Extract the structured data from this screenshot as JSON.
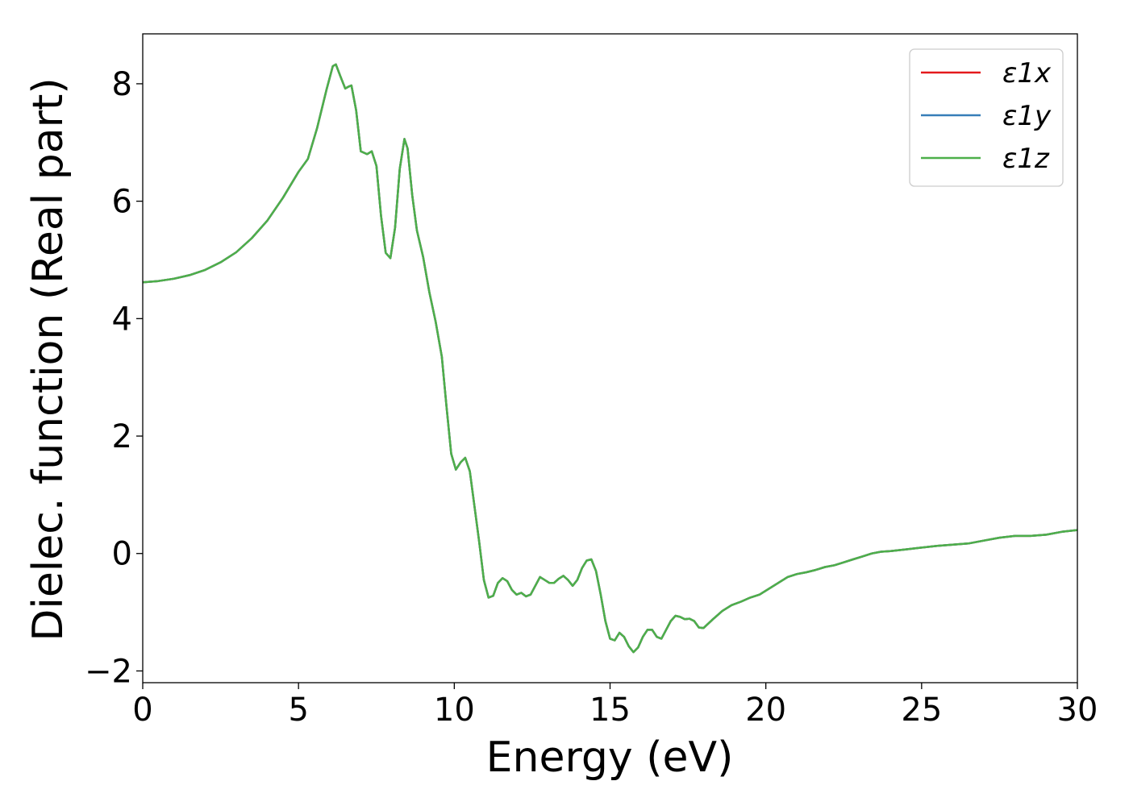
{
  "chart_data": {
    "type": "line",
    "title": "",
    "xlabel": "Energy (eV)",
    "ylabel": "Dielec. function (Real part)",
    "xlim": [
      0,
      30
    ],
    "ylim": [
      -2.2,
      8.85
    ],
    "xticks": [
      0,
      5,
      10,
      15,
      20,
      25,
      30
    ],
    "yticks": [
      -2,
      0,
      2,
      4,
      6,
      8
    ],
    "xtick_labels": [
      "0",
      "5",
      "10",
      "15",
      "20",
      "25",
      "30"
    ],
    "ytick_labels": [
      "−2",
      "0",
      "2",
      "4",
      "6",
      "8"
    ],
    "grid": false,
    "legend_position": "top-right",
    "x": [
      0,
      0.5,
      1.0,
      1.5,
      2.0,
      2.5,
      3.0,
      3.5,
      4.0,
      4.5,
      5.0,
      5.3,
      5.6,
      5.9,
      6.1,
      6.2,
      6.35,
      6.5,
      6.6,
      6.7,
      6.85,
      7.0,
      7.2,
      7.35,
      7.5,
      7.65,
      7.8,
      7.95,
      8.1,
      8.25,
      8.4,
      8.5,
      8.65,
      8.8,
      9.0,
      9.2,
      9.4,
      9.6,
      9.75,
      9.9,
      10.05,
      10.2,
      10.35,
      10.5,
      10.65,
      10.8,
      10.95,
      11.1,
      11.25,
      11.4,
      11.55,
      11.7,
      11.85,
      12.0,
      12.15,
      12.3,
      12.45,
      12.6,
      12.75,
      12.9,
      13.05,
      13.2,
      13.35,
      13.5,
      13.65,
      13.8,
      13.95,
      14.1,
      14.25,
      14.4,
      14.55,
      14.7,
      14.85,
      15.0,
      15.15,
      15.3,
      15.45,
      15.6,
      15.75,
      15.9,
      16.05,
      16.2,
      16.35,
      16.5,
      16.65,
      16.8,
      16.95,
      17.1,
      17.25,
      17.4,
      17.55,
      17.7,
      17.85,
      18.0,
      18.3,
      18.6,
      18.9,
      19.2,
      19.5,
      19.8,
      20.1,
      20.4,
      20.7,
      21.0,
      21.3,
      21.6,
      21.9,
      22.2,
      22.5,
      22.8,
      23.1,
      23.4,
      23.7,
      24.0,
      24.5,
      25.0,
      25.5,
      26.0,
      26.5,
      27.0,
      27.5,
      28.0,
      28.5,
      29.0,
      29.5,
      30.0
    ],
    "series": [
      {
        "name": "ε1x",
        "color": "#e41a1c",
        "y": [
          4.62,
          4.64,
          4.68,
          4.74,
          4.83,
          4.96,
          5.13,
          5.37,
          5.67,
          6.06,
          6.5,
          6.72,
          7.25,
          7.9,
          8.3,
          8.33,
          8.12,
          7.92,
          7.95,
          7.97,
          7.55,
          6.85,
          6.8,
          6.85,
          6.6,
          5.75,
          5.12,
          5.03,
          5.55,
          6.55,
          7.06,
          6.9,
          6.1,
          5.5,
          5.05,
          4.45,
          3.95,
          3.35,
          2.5,
          1.7,
          1.43,
          1.55,
          1.63,
          1.4,
          0.8,
          0.2,
          -0.45,
          -0.75,
          -0.72,
          -0.5,
          -0.42,
          -0.47,
          -0.62,
          -0.7,
          -0.67,
          -0.73,
          -0.7,
          -0.55,
          -0.4,
          -0.45,
          -0.5,
          -0.5,
          -0.43,
          -0.38,
          -0.45,
          -0.55,
          -0.45,
          -0.25,
          -0.12,
          -0.1,
          -0.3,
          -0.7,
          -1.15,
          -1.45,
          -1.48,
          -1.35,
          -1.42,
          -1.58,
          -1.68,
          -1.6,
          -1.42,
          -1.3,
          -1.3,
          -1.42,
          -1.45,
          -1.3,
          -1.15,
          -1.06,
          -1.08,
          -1.12,
          -1.11,
          -1.15,
          -1.26,
          -1.27,
          -1.12,
          -0.98,
          -0.88,
          -0.82,
          -0.75,
          -0.7,
          -0.6,
          -0.5,
          -0.4,
          -0.35,
          -0.32,
          -0.28,
          -0.23,
          -0.2,
          -0.15,
          -0.1,
          -0.05,
          0.0,
          0.03,
          0.04,
          0.07,
          0.1,
          0.13,
          0.15,
          0.17,
          0.22,
          0.27,
          0.3,
          0.3,
          0.32,
          0.37,
          0.4
        ]
      },
      {
        "name": "ε1y",
        "color": "#377eb8",
        "y": [
          4.62,
          4.64,
          4.68,
          4.74,
          4.83,
          4.96,
          5.13,
          5.37,
          5.67,
          6.06,
          6.5,
          6.72,
          7.25,
          7.9,
          8.3,
          8.33,
          8.12,
          7.92,
          7.95,
          7.97,
          7.55,
          6.85,
          6.8,
          6.85,
          6.6,
          5.75,
          5.12,
          5.03,
          5.55,
          6.55,
          7.06,
          6.9,
          6.1,
          5.5,
          5.05,
          4.45,
          3.95,
          3.35,
          2.5,
          1.7,
          1.43,
          1.55,
          1.63,
          1.4,
          0.8,
          0.2,
          -0.45,
          -0.75,
          -0.72,
          -0.5,
          -0.42,
          -0.47,
          -0.62,
          -0.7,
          -0.67,
          -0.73,
          -0.7,
          -0.55,
          -0.4,
          -0.45,
          -0.5,
          -0.5,
          -0.43,
          -0.38,
          -0.45,
          -0.55,
          -0.45,
          -0.25,
          -0.12,
          -0.1,
          -0.3,
          -0.7,
          -1.15,
          -1.45,
          -1.48,
          -1.35,
          -1.42,
          -1.58,
          -1.68,
          -1.6,
          -1.42,
          -1.3,
          -1.3,
          -1.42,
          -1.45,
          -1.3,
          -1.15,
          -1.06,
          -1.08,
          -1.12,
          -1.11,
          -1.15,
          -1.26,
          -1.27,
          -1.12,
          -0.98,
          -0.88,
          -0.82,
          -0.75,
          -0.7,
          -0.6,
          -0.5,
          -0.4,
          -0.35,
          -0.32,
          -0.28,
          -0.23,
          -0.2,
          -0.15,
          -0.1,
          -0.05,
          0.0,
          0.03,
          0.04,
          0.07,
          0.1,
          0.13,
          0.15,
          0.17,
          0.22,
          0.27,
          0.3,
          0.3,
          0.32,
          0.37,
          0.4
        ]
      },
      {
        "name": "ε1z",
        "color": "#4daf4a",
        "y": [
          4.62,
          4.64,
          4.68,
          4.74,
          4.83,
          4.96,
          5.13,
          5.37,
          5.67,
          6.06,
          6.5,
          6.72,
          7.25,
          7.9,
          8.3,
          8.33,
          8.12,
          7.92,
          7.95,
          7.97,
          7.55,
          6.85,
          6.8,
          6.85,
          6.6,
          5.75,
          5.12,
          5.03,
          5.55,
          6.55,
          7.06,
          6.9,
          6.1,
          5.5,
          5.05,
          4.45,
          3.95,
          3.35,
          2.5,
          1.7,
          1.43,
          1.55,
          1.63,
          1.4,
          0.8,
          0.2,
          -0.45,
          -0.75,
          -0.72,
          -0.5,
          -0.42,
          -0.47,
          -0.62,
          -0.7,
          -0.67,
          -0.73,
          -0.7,
          -0.55,
          -0.4,
          -0.45,
          -0.5,
          -0.5,
          -0.43,
          -0.38,
          -0.45,
          -0.55,
          -0.45,
          -0.25,
          -0.12,
          -0.1,
          -0.3,
          -0.7,
          -1.15,
          -1.45,
          -1.48,
          -1.35,
          -1.42,
          -1.58,
          -1.68,
          -1.6,
          -1.42,
          -1.3,
          -1.3,
          -1.42,
          -1.45,
          -1.3,
          -1.15,
          -1.06,
          -1.08,
          -1.12,
          -1.11,
          -1.15,
          -1.26,
          -1.27,
          -1.12,
          -0.98,
          -0.88,
          -0.82,
          -0.75,
          -0.7,
          -0.6,
          -0.5,
          -0.4,
          -0.35,
          -0.32,
          -0.28,
          -0.23,
          -0.2,
          -0.15,
          -0.1,
          -0.05,
          0.0,
          0.03,
          0.04,
          0.07,
          0.1,
          0.13,
          0.15,
          0.17,
          0.22,
          0.27,
          0.3,
          0.3,
          0.32,
          0.37,
          0.4
        ]
      }
    ]
  }
}
